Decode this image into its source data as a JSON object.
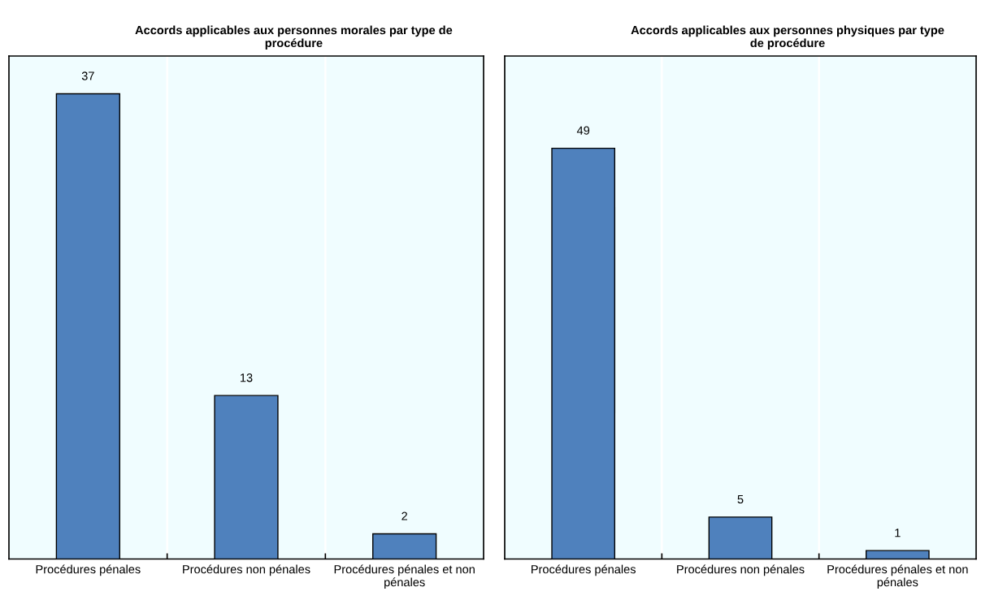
{
  "chart_data": [
    {
      "type": "bar",
      "title": "Accords applicables aux personnes morales par type de procédure",
      "categories": [
        "Procédures pénales",
        "Procédures non pénales",
        "Procédures pénales et non pénales"
      ],
      "values": [
        37,
        13,
        2
      ],
      "color": "#4f81bd",
      "data_labels": true,
      "ylim": [
        0,
        40
      ],
      "tick_labels": "x",
      "grid": "x"
    },
    {
      "type": "bar",
      "title": "Accords applicables aux personnes physiques par type de procédure",
      "categories": [
        "Procédures pénales",
        "Procédures non pénales",
        "Procédures pénales et non pénales"
      ],
      "values": [
        49,
        5,
        1
      ],
      "color": "#4f81bd",
      "data_labels": true,
      "ylim": [
        0,
        60
      ],
      "tick_labels": "x",
      "grid": "x"
    }
  ]
}
